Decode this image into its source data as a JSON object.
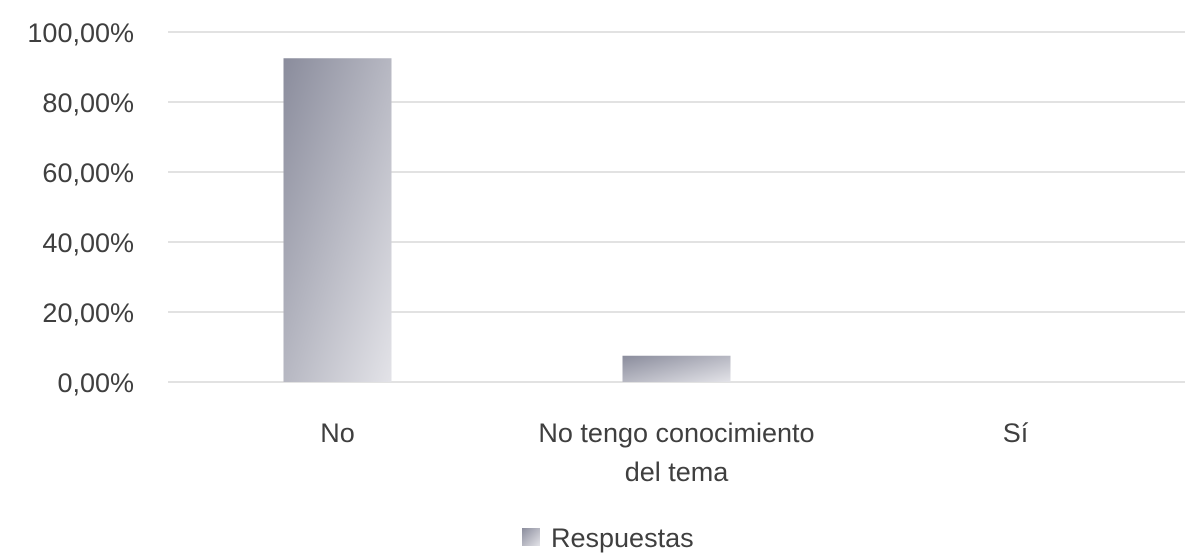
{
  "chart_data": {
    "type": "bar",
    "title": "",
    "xlabel": "",
    "ylabel": "",
    "categories": [
      [
        "No"
      ],
      [
        "No tengo conocimiento",
        "del tema"
      ],
      [
        "Sí"
      ]
    ],
    "series": [
      {
        "name": "Respuestas",
        "values": [
          92.5,
          7.5,
          0.0
        ]
      }
    ],
    "ylim": [
      0,
      100
    ],
    "yticks": [
      0,
      20,
      40,
      60,
      80,
      100
    ],
    "ytick_labels": [
      "0,00%",
      "20,00%",
      "40,00%",
      "60,00%",
      "80,00%",
      "100,00%"
    ],
    "grid": true,
    "legend_position": "bottom",
    "colors": {
      "bar_gradient_dark": "#8a8c9c",
      "bar_gradient_light": "#e3e3e8",
      "gridline": "#d9d9d9",
      "text": "#3f3f3f"
    }
  }
}
